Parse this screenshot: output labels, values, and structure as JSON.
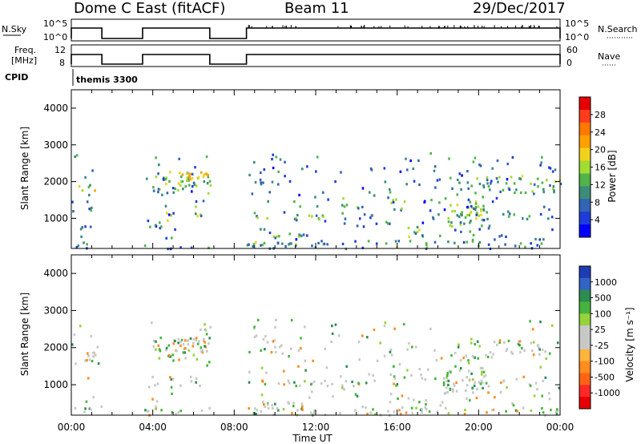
{
  "header": {
    "title": "Dome C East (fitACF)",
    "beam": "Beam 11",
    "date": "29/Dec/2017"
  },
  "sky_panel": {
    "left_label": "N.Sky",
    "right_label": "N.Search",
    "left_ticks": [
      "10^5",
      "10^0"
    ],
    "right_ticks": [
      "10^5",
      "10^0"
    ]
  },
  "freq_panel": {
    "left_label_1": "Freq.",
    "left_label_2": "[MHz]",
    "right_label": "Nave",
    "left_ticks": [
      "12",
      "8"
    ],
    "right_ticks": [
      "60",
      "0"
    ]
  },
  "cpid_panel": {
    "label": "CPID",
    "program": "themis 3300"
  },
  "power_panel": {
    "ylabel": "Slant Range [km]",
    "yticks": [
      "4000",
      "3000",
      "2000",
      "1000"
    ],
    "colorbar_label": "Power [dB]",
    "colorbar_ticks": [
      "28",
      "24",
      "20",
      "16",
      "12",
      "8",
      "4"
    ],
    "colorbar_colors": [
      "#e60000",
      "#ff3c1e",
      "#ff7800",
      "#ffa000",
      "#f0d21e",
      "#a0dc32",
      "#50b44b",
      "#3c8c78",
      "#3264b4",
      "#1e3cdc",
      "#0000ff"
    ]
  },
  "velocity_panel": {
    "ylabel": "Slant Range [km]",
    "yticks": [
      "4000",
      "3000",
      "2000",
      "1000"
    ],
    "colorbar_label": "Velocity [m s⁻¹]",
    "colorbar_ticks": [
      "1000",
      "500",
      "100",
      "25",
      "-25",
      "-100",
      "-500",
      "-1000"
    ],
    "colorbar_colors": [
      "#1e3cb4",
      "#3264c8",
      "#2d8c50",
      "#46b43c",
      "#96d23c",
      "#c8c8c8",
      "#c8c8c8",
      "#ffb43c",
      "#ff8c1e",
      "#ff6414",
      "#ff2828",
      "#e60000"
    ]
  },
  "xaxis": {
    "label": "Time UT",
    "ticks": [
      "00:00",
      "04:00",
      "08:00",
      "12:00",
      "16:00",
      "20:00",
      "00:00"
    ]
  },
  "chart_data": {
    "type": "heatmap",
    "x_range_hours": [
      0,
      24
    ],
    "y_range_km": [
      180,
      4500
    ],
    "operating_periods_hours": [
      [
        0.0,
        1.5
      ],
      [
        3.5,
        6.8
      ],
      [
        8.6,
        24.0
      ]
    ]
  }
}
